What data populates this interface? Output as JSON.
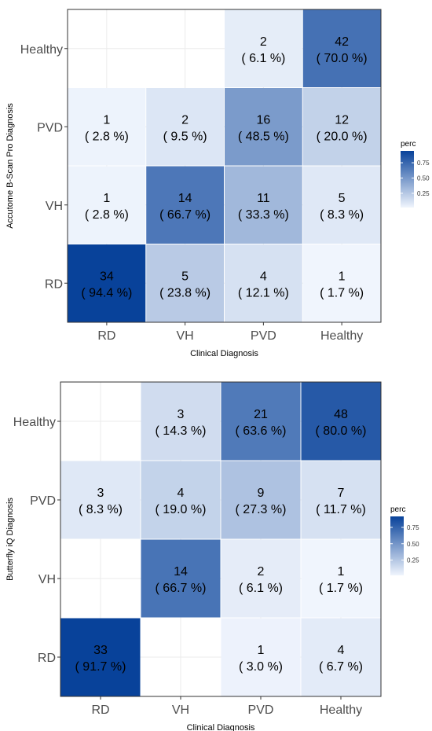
{
  "chart_data": [
    {
      "type": "heatmap",
      "xlabel": "Clinical Diagnosis",
      "ylabel": "Accutome B-Scan Pro Diagnosis",
      "x_categories": [
        "RD",
        "VH",
        "PVD",
        "Healthy"
      ],
      "y_categories": [
        "RD",
        "VH",
        "PVD",
        "Healthy"
      ],
      "legend": {
        "title": "perc",
        "ticks": [
          "0.75",
          "0.50",
          "0.25"
        ],
        "tick_values": [
          0.75,
          0.5,
          0.25
        ],
        "range": [
          0.017,
          0.944
        ],
        "position": "right"
      },
      "colors": {
        "low": "#f0f5fd",
        "high": "#08429a"
      },
      "cells": [
        {
          "x": "RD",
          "y": "RD",
          "count": "34",
          "perc_label": "( 94.4 %)",
          "perc": 0.944
        },
        {
          "x": "VH",
          "y": "RD",
          "count": "5",
          "perc_label": "( 23.8 %)",
          "perc": 0.238
        },
        {
          "x": "PVD",
          "y": "RD",
          "count": "4",
          "perc_label": "( 12.1 %)",
          "perc": 0.121
        },
        {
          "x": "Healthy",
          "y": "RD",
          "count": "1",
          "perc_label": "( 1.7 %)",
          "perc": 0.017
        },
        {
          "x": "RD",
          "y": "VH",
          "count": "1",
          "perc_label": "( 2.8 %)",
          "perc": 0.028
        },
        {
          "x": "VH",
          "y": "VH",
          "count": "14",
          "perc_label": "( 66.7 %)",
          "perc": 0.667
        },
        {
          "x": "PVD",
          "y": "VH",
          "count": "11",
          "perc_label": "( 33.3 %)",
          "perc": 0.333
        },
        {
          "x": "Healthy",
          "y": "VH",
          "count": "5",
          "perc_label": "( 8.3 %)",
          "perc": 0.083
        },
        {
          "x": "RD",
          "y": "PVD",
          "count": "1",
          "perc_label": "( 2.8 %)",
          "perc": 0.028
        },
        {
          "x": "VH",
          "y": "PVD",
          "count": "2",
          "perc_label": "( 9.5 %)",
          "perc": 0.095
        },
        {
          "x": "PVD",
          "y": "PVD",
          "count": "16",
          "perc_label": "( 48.5 %)",
          "perc": 0.485
        },
        {
          "x": "Healthy",
          "y": "PVD",
          "count": "12",
          "perc_label": "( 20.0 %)",
          "perc": 0.2
        },
        {
          "x": "PVD",
          "y": "Healthy",
          "count": "2",
          "perc_label": "( 6.1 %)",
          "perc": 0.061
        },
        {
          "x": "Healthy",
          "y": "Healthy",
          "count": "42",
          "perc_label": "( 70.0 %)",
          "perc": 0.7
        }
      ]
    },
    {
      "type": "heatmap",
      "xlabel": "Clinical Diagnosis",
      "ylabel": "Butterfly iQ Diagnosis",
      "x_categories": [
        "RD",
        "VH",
        "PVD",
        "Healthy"
      ],
      "y_categories": [
        "RD",
        "VH",
        "PVD",
        "Healthy"
      ],
      "legend": {
        "title": "perc",
        "ticks": [
          "0.75",
          "0.50",
          "0.25"
        ],
        "tick_values": [
          0.75,
          0.5,
          0.25
        ],
        "range": [
          0.017,
          0.917
        ],
        "position": "right"
      },
      "colors": {
        "low": "#f0f5fd",
        "high": "#08429a"
      },
      "cells": [
        {
          "x": "RD",
          "y": "RD",
          "count": "33",
          "perc_label": "( 91.7 %)",
          "perc": 0.917
        },
        {
          "x": "PVD",
          "y": "RD",
          "count": "1",
          "perc_label": "( 3.0 %)",
          "perc": 0.03
        },
        {
          "x": "Healthy",
          "y": "RD",
          "count": "4",
          "perc_label": "( 6.7 %)",
          "perc": 0.067
        },
        {
          "x": "VH",
          "y": "VH",
          "count": "14",
          "perc_label": "( 66.7 %)",
          "perc": 0.667
        },
        {
          "x": "PVD",
          "y": "VH",
          "count": "2",
          "perc_label": "( 6.1 %)",
          "perc": 0.061
        },
        {
          "x": "Healthy",
          "y": "VH",
          "count": "1",
          "perc_label": "( 1.7 %)",
          "perc": 0.017
        },
        {
          "x": "RD",
          "y": "PVD",
          "count": "3",
          "perc_label": "( 8.3 %)",
          "perc": 0.083
        },
        {
          "x": "VH",
          "y": "PVD",
          "count": "4",
          "perc_label": "( 19.0 %)",
          "perc": 0.19
        },
        {
          "x": "PVD",
          "y": "PVD",
          "count": "9",
          "perc_label": "( 27.3 %)",
          "perc": 0.273
        },
        {
          "x": "Healthy",
          "y": "PVD",
          "count": "7",
          "perc_label": "( 11.7 %)",
          "perc": 0.117
        },
        {
          "x": "VH",
          "y": "Healthy",
          "count": "3",
          "perc_label": "( 14.3 %)",
          "perc": 0.143
        },
        {
          "x": "PVD",
          "y": "Healthy",
          "count": "21",
          "perc_label": "( 63.6 %)",
          "perc": 0.636
        },
        {
          "x": "Healthy",
          "y": "Healthy",
          "count": "48",
          "perc_label": "( 80.0 %)",
          "perc": 0.8
        }
      ]
    }
  ]
}
